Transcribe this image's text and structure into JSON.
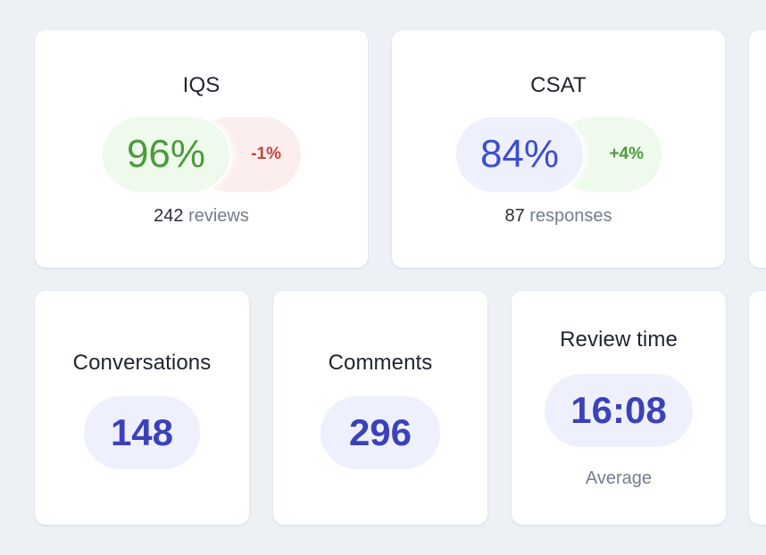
{
  "colors": {
    "background": "#edf1f6",
    "card": "#ffffff",
    "good_text": "#4c9a3c",
    "good_bg": "#eefaec",
    "bad_text": "#c9423e",
    "bad_bg": "#fdeeee",
    "accent_text": "#3b42b8",
    "accent_bg": "#eef0fd"
  },
  "iqs": {
    "title": "IQS",
    "value": "96%",
    "delta": "-1%",
    "count": "242",
    "count_label": "reviews"
  },
  "csat": {
    "title": "CSAT",
    "value": "84%",
    "delta": "+4%",
    "count": "87",
    "count_label": "responses"
  },
  "conversations": {
    "title": "Conversations",
    "value": "148"
  },
  "comments": {
    "title": "Comments",
    "value": "296"
  },
  "review_time": {
    "title": "Review time",
    "value": "16:08",
    "caption": "Average"
  }
}
